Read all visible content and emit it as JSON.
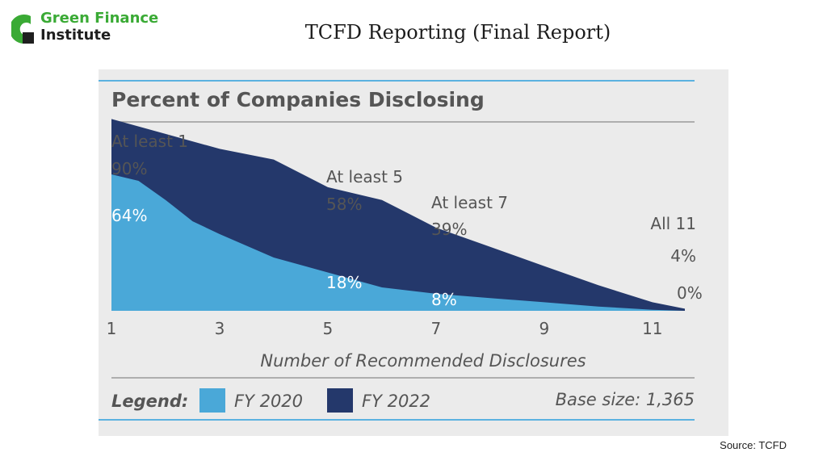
{
  "header": {
    "logo_line1": "Green Finance",
    "logo_line2": "Institute",
    "title": "TCFD Reporting (Final Report)"
  },
  "footer": {
    "source": "Source: TCFD"
  },
  "colors": {
    "fy2020": "#4aa8d8",
    "fy2022": "#24386b",
    "brand_green": "#3aaa35"
  },
  "chart_data": {
    "type": "area",
    "title": "Percent of Companies Disclosing",
    "xlabel": "Number of Recommended Disclosures",
    "ylabel": "",
    "x_ticks": [
      "1",
      "3",
      "5",
      "7",
      "9",
      "11"
    ],
    "xlim": [
      1,
      11.6
    ],
    "ylim": [
      0,
      100
    ],
    "grid": false,
    "series": [
      {
        "name": "FY 2022",
        "color": "#24386b",
        "x": [
          1,
          2,
          3,
          4,
          5,
          6,
          7,
          8,
          9,
          10,
          11,
          11.6
        ],
        "y": [
          90,
          83,
          76,
          71,
          58,
          52,
          39,
          30,
          21,
          12,
          4,
          1
        ]
      },
      {
        "name": "FY 2020",
        "color": "#4aa8d8",
        "x": [
          1,
          1.5,
          2,
          2.5,
          3,
          4,
          5,
          6,
          7,
          8,
          9,
          10,
          11,
          11.6
        ],
        "y": [
          64,
          61,
          52,
          42,
          36,
          25,
          18,
          11,
          8,
          6,
          4,
          2,
          0.5,
          0
        ]
      }
    ],
    "annotations": [
      {
        "label": "At least 1",
        "value_2022": "90%",
        "value_2020": "64%"
      },
      {
        "label": "At least 5",
        "value_2022": "58%",
        "value_2020": "18%"
      },
      {
        "label": "At least 7",
        "value_2022": "39%",
        "value_2020": "8%"
      },
      {
        "label": "All 11",
        "value_2022": "4%",
        "value_2020": "0%"
      }
    ],
    "legend": {
      "title": "Legend:",
      "items": [
        "FY 2020",
        "FY 2022"
      ],
      "placement": "bottom"
    },
    "base_size": "Base size: 1,365"
  }
}
